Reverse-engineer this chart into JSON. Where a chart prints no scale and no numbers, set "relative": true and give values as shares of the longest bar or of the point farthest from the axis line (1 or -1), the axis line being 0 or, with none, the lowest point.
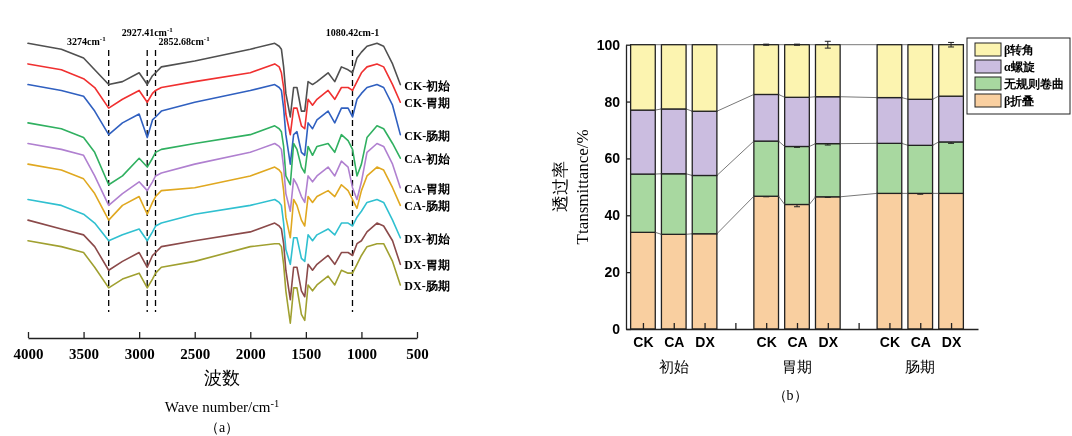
{
  "chart_data": [
    {
      "type": "line",
      "relative": true,
      "xlabel": "波数\nWave number/cm$^{-1}$",
      "xlim": [
        4000,
        500
      ],
      "xticks": [
        4000,
        3500,
        3000,
        2500,
        2000,
        1500,
        1000,
        500
      ],
      "marker": "none",
      "line_style": "solid",
      "x": [
        4000,
        3700,
        3500,
        3400,
        3274,
        3150,
        3000,
        2927,
        2880,
        2852,
        2800,
        2500,
        2000,
        1780,
        1740,
        1720,
        1700,
        1680,
        1640,
        1610,
        1580,
        1540,
        1510,
        1480,
        1440,
        1400,
        1300,
        1240,
        1180,
        1120,
        1080,
        1040,
        1000,
        950,
        860,
        800,
        720,
        650
      ],
      "series": [
        {
          "name": "CK-初始",
          "color": "#505050",
          "values": [
            1.0,
            0.98,
            0.95,
            0.91,
            0.86,
            0.87,
            0.9,
            0.86,
            0.89,
            0.9,
            0.92,
            0.94,
            0.98,
            1.0,
            0.99,
            0.98,
            0.92,
            0.83,
            0.75,
            0.85,
            0.85,
            0.77,
            0.77,
            0.87,
            0.86,
            0.87,
            0.9,
            0.87,
            0.92,
            0.91,
            0.9,
            0.95,
            0.97,
            0.99,
            1.0,
            0.99,
            0.93,
            0.86
          ]
        },
        {
          "name": "CK-胃期",
          "color": "#f03030",
          "values": [
            0.93,
            0.91,
            0.88,
            0.85,
            0.78,
            0.81,
            0.84,
            0.8,
            0.83,
            0.84,
            0.85,
            0.87,
            0.9,
            0.93,
            0.92,
            0.9,
            0.85,
            0.76,
            0.69,
            0.78,
            0.78,
            0.72,
            0.71,
            0.81,
            0.79,
            0.81,
            0.84,
            0.81,
            0.85,
            0.85,
            0.84,
            0.87,
            0.9,
            0.92,
            0.93,
            0.92,
            0.86,
            0.8
          ]
        },
        {
          "name": "CK-肠期",
          "color": "#3060c0",
          "values": [
            0.86,
            0.84,
            0.82,
            0.77,
            0.69,
            0.73,
            0.76,
            0.68,
            0.74,
            0.75,
            0.77,
            0.8,
            0.84,
            0.86,
            0.85,
            0.84,
            0.78,
            0.69,
            0.59,
            0.69,
            0.7,
            0.63,
            0.62,
            0.73,
            0.71,
            0.74,
            0.77,
            0.73,
            0.78,
            0.78,
            0.75,
            0.81,
            0.83,
            0.85,
            0.86,
            0.85,
            0.79,
            0.69
          ]
        },
        {
          "name": "CA-初始",
          "color": "#30b060",
          "values": [
            0.73,
            0.71,
            0.68,
            0.63,
            0.52,
            0.55,
            0.61,
            0.58,
            0.61,
            0.63,
            0.64,
            0.66,
            0.69,
            0.72,
            0.71,
            0.7,
            0.65,
            0.55,
            0.52,
            0.66,
            0.64,
            0.58,
            0.56,
            0.65,
            0.62,
            0.65,
            0.66,
            0.63,
            0.69,
            0.67,
            0.64,
            0.55,
            0.59,
            0.68,
            0.72,
            0.71,
            0.66,
            0.61
          ]
        },
        {
          "name": "CA-胃期",
          "color": "#b080d0",
          "values": [
            0.66,
            0.64,
            0.62,
            0.55,
            0.45,
            0.49,
            0.53,
            0.5,
            0.53,
            0.55,
            0.56,
            0.59,
            0.63,
            0.66,
            0.65,
            0.64,
            0.58,
            0.49,
            0.43,
            0.54,
            0.52,
            0.48,
            0.46,
            0.55,
            0.53,
            0.55,
            0.58,
            0.55,
            0.6,
            0.58,
            0.51,
            0.47,
            0.53,
            0.63,
            0.66,
            0.65,
            0.59,
            0.51
          ]
        },
        {
          "name": "CA-肠期",
          "color": "#e0a820",
          "values": [
            0.59,
            0.57,
            0.54,
            0.49,
            0.4,
            0.45,
            0.48,
            0.42,
            0.46,
            0.48,
            0.5,
            0.51,
            0.55,
            0.58,
            0.57,
            0.56,
            0.5,
            0.41,
            0.34,
            0.47,
            0.45,
            0.4,
            0.38,
            0.48,
            0.46,
            0.48,
            0.5,
            0.48,
            0.52,
            0.5,
            0.47,
            0.44,
            0.5,
            0.55,
            0.58,
            0.57,
            0.51,
            0.45
          ]
        },
        {
          "name": "DX-初始",
          "color": "#30c0d0",
          "values": [
            0.47,
            0.45,
            0.42,
            0.39,
            0.33,
            0.35,
            0.37,
            0.33,
            0.36,
            0.38,
            0.39,
            0.42,
            0.45,
            0.47,
            0.46,
            0.45,
            0.39,
            0.3,
            0.25,
            0.34,
            0.34,
            0.27,
            0.26,
            0.35,
            0.33,
            0.35,
            0.37,
            0.35,
            0.39,
            0.39,
            0.38,
            0.41,
            0.43,
            0.46,
            0.47,
            0.46,
            0.4,
            0.34
          ]
        },
        {
          "name": "DX-胃期",
          "color": "#8b4a4a",
          "values": [
            0.4,
            0.37,
            0.35,
            0.31,
            0.23,
            0.26,
            0.29,
            0.24,
            0.28,
            0.29,
            0.31,
            0.33,
            0.36,
            0.39,
            0.38,
            0.37,
            0.32,
            0.23,
            0.13,
            0.24,
            0.24,
            0.16,
            0.14,
            0.25,
            0.23,
            0.25,
            0.28,
            0.25,
            0.29,
            0.29,
            0.28,
            0.32,
            0.33,
            0.36,
            0.39,
            0.38,
            0.33,
            0.25
          ]
        },
        {
          "name": "DX-肠期",
          "color": "#a0a030",
          "values": [
            0.33,
            0.31,
            0.29,
            0.24,
            0.17,
            0.2,
            0.22,
            0.17,
            0.2,
            0.22,
            0.24,
            0.26,
            0.31,
            0.32,
            0.32,
            0.31,
            0.25,
            0.16,
            0.05,
            0.17,
            0.17,
            0.08,
            0.06,
            0.18,
            0.16,
            0.18,
            0.21,
            0.18,
            0.23,
            0.22,
            0.22,
            0.25,
            0.28,
            0.31,
            0.32,
            0.32,
            0.26,
            0.18
          ]
        }
      ],
      "ref_lines": [
        {
          "axis": "x",
          "value": 3274,
          "label": "3274cm$^{-1}$",
          "line_style": "dashed",
          "color": "#000000"
        },
        {
          "axis": "x",
          "value": 2927.41,
          "label": "2927.41cm$^{-1}$",
          "line_style": "dashed",
          "color": "#000000"
        },
        {
          "axis": "x",
          "value": 2852.68,
          "label": "2852.68cm$^{-1}$",
          "line_style": "dashed",
          "color": "#000000"
        },
        {
          "axis": "x",
          "value": 1080.42,
          "label": "1080.42cm-1",
          "line_style": "dashed",
          "color": "#000000"
        }
      ],
      "annotations": [
        "（a）"
      ]
    },
    {
      "type": "bar",
      "stacked": true,
      "ylabel": "透过率\nTtansmittance/%",
      "ylim": [
        0,
        100
      ],
      "yticks": [
        0,
        20,
        40,
        60,
        80,
        100
      ],
      "legend": "top right",
      "categories": [
        "CK",
        "CA",
        "DX",
        null,
        "CK",
        "CA",
        "DX",
        null,
        "CK",
        "CA",
        "DX"
      ],
      "series": [
        {
          "name": "β折叠",
          "color": "#f9cfa0",
          "values": [
            34.0,
            33.3,
            33.5,
            null,
            46.7,
            43.8,
            46.5,
            null,
            47.7,
            47.7,
            47.7
          ],
          "errors": [
            null,
            null,
            null,
            null,
            0.2,
            0.8,
            0.2,
            null,
            null,
            0.3,
            null
          ]
        },
        {
          "name": "无规则卷曲",
          "color": "#a8d8a0",
          "values": [
            20.5,
            21.3,
            20.5,
            null,
            19.4,
            20.4,
            18.7,
            null,
            17.6,
            16.9,
            18.1
          ],
          "errors": [
            null,
            null,
            null,
            null,
            null,
            0.3,
            0.5,
            null,
            null,
            null,
            0.5
          ]
        },
        {
          "name": "α螺旋",
          "color": "#cbbde0",
          "values": [
            22.5,
            22.8,
            22.6,
            null,
            16.4,
            17.3,
            16.5,
            null,
            16.1,
            16.2,
            16.1
          ]
        },
        {
          "name": "β转角",
          "color": "#fcf4b0",
          "values": [
            23.0,
            22.6,
            23.4,
            null,
            17.5,
            18.5,
            18.3,
            null,
            18.6,
            19.2,
            18.1
          ],
          "errors": [
            null,
            null,
            null,
            null,
            0.2,
            0.2,
            1.2,
            null,
            null,
            null,
            0.8
          ]
        }
      ],
      "annotations": [
        "初始",
        "胃期",
        "肠期",
        "（b）"
      ]
    }
  ]
}
